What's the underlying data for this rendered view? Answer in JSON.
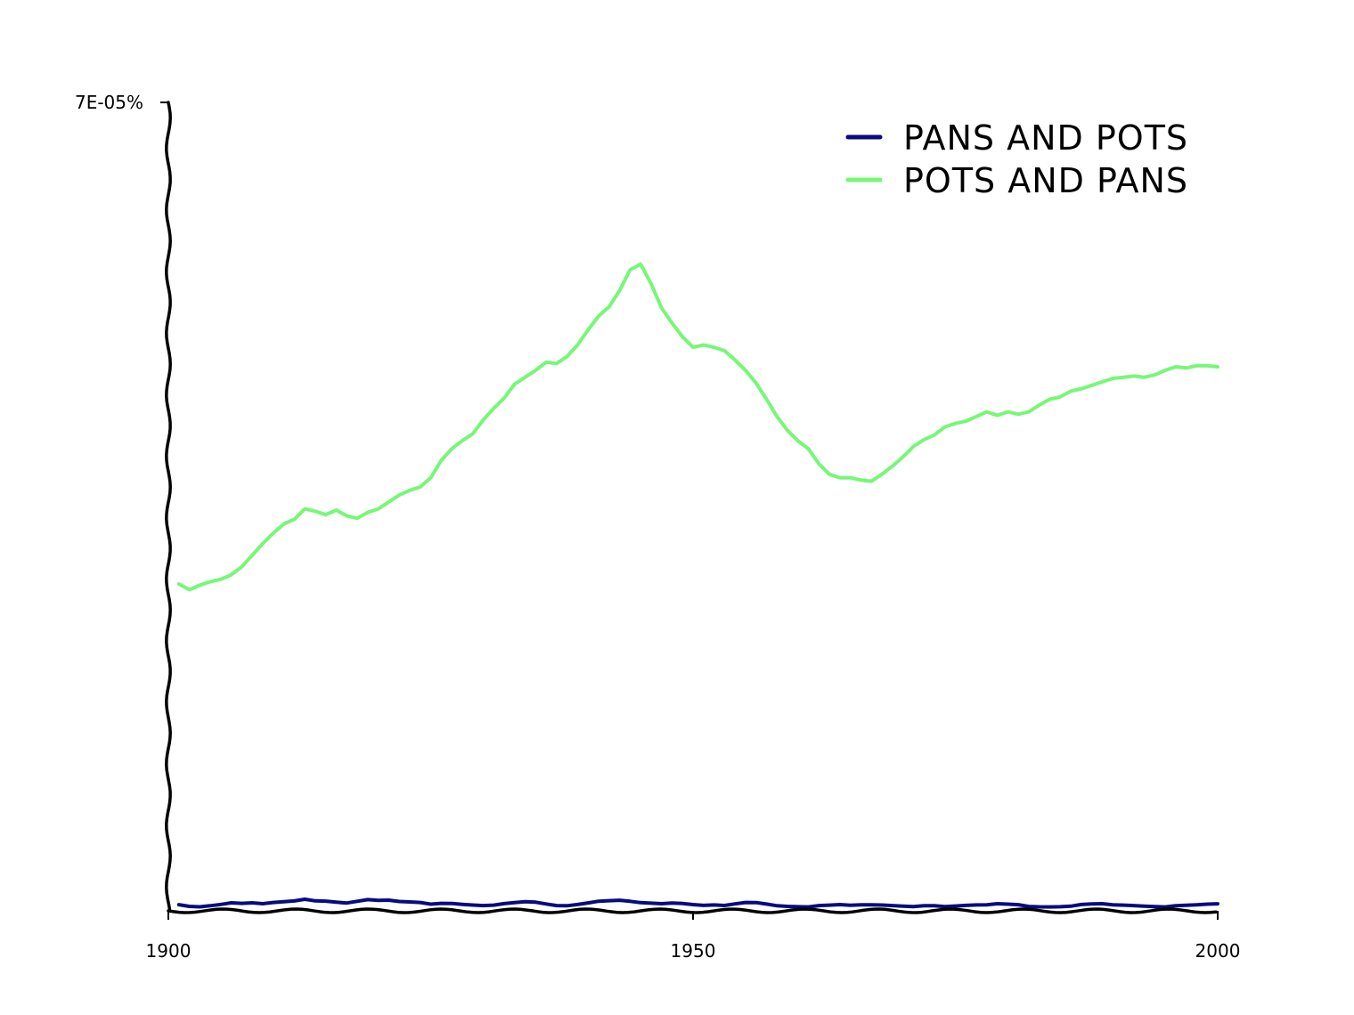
{
  "chart_data": {
    "type": "line",
    "title": "",
    "xlabel": "",
    "ylabel": "",
    "xlim": [
      1900,
      2000
    ],
    "ylim": [
      0,
      7e-05
    ],
    "x_ticks": [
      {
        "value": 1900,
        "label": "1900"
      },
      {
        "value": 1950,
        "label": "1950"
      },
      {
        "value": 2000,
        "label": "2000"
      }
    ],
    "y_ticks": [
      {
        "value": 7e-05,
        "label": "7E-05%"
      }
    ],
    "grid": false,
    "legend_position": "top-right",
    "style": "hand-drawn",
    "x": [
      1901,
      1902,
      1903,
      1904,
      1905,
      1906,
      1907,
      1908,
      1909,
      1910,
      1911,
      1912,
      1913,
      1914,
      1915,
      1916,
      1917,
      1918,
      1919,
      1920,
      1921,
      1922,
      1923,
      1924,
      1925,
      1926,
      1927,
      1928,
      1929,
      1930,
      1931,
      1932,
      1933,
      1934,
      1935,
      1936,
      1937,
      1938,
      1939,
      1940,
      1941,
      1942,
      1943,
      1944,
      1945,
      1946,
      1947,
      1948,
      1949,
      1950,
      1951,
      1952,
      1953,
      1954,
      1955,
      1956,
      1957,
      1958,
      1959,
      1960,
      1961,
      1962,
      1963,
      1964,
      1965,
      1966,
      1967,
      1968,
      1969,
      1970,
      1971,
      1972,
      1973,
      1974,
      1975,
      1976,
      1977,
      1978,
      1979,
      1980,
      1981,
      1982,
      1983,
      1984,
      1985,
      1986,
      1987,
      1988,
      1989,
      1990,
      1991,
      1992,
      1993,
      1994,
      1995,
      1996,
      1997,
      1998,
      1999,
      2000
    ],
    "series": [
      {
        "name": "PANS AND POTS",
        "color": "#0a0a80",
        "values": [
          3e-07,
          2e-07,
          2e-07,
          3e-07,
          4e-07,
          5e-07,
          4e-07,
          4e-07,
          3e-07,
          4e-07,
          5e-07,
          6e-07,
          8e-07,
          7e-07,
          7e-07,
          6e-07,
          5e-07,
          6e-07,
          7e-07,
          6e-07,
          6e-07,
          5e-07,
          5e-07,
          5e-07,
          4e-07,
          5e-07,
          5e-07,
          4e-07,
          3e-07,
          2e-07,
          2e-07,
          3e-07,
          4e-07,
          5e-07,
          5e-07,
          4e-07,
          3e-07,
          3e-07,
          4e-07,
          5e-07,
          6e-07,
          6e-07,
          6e-07,
          5e-07,
          4e-07,
          4e-07,
          4e-07,
          5e-07,
          5e-07,
          4e-07,
          3e-07,
          3e-07,
          2e-07,
          3e-07,
          4e-07,
          4e-07,
          3e-07,
          2e-07,
          2e-07,
          2e-07,
          2e-07,
          3e-07,
          3e-07,
          3e-07,
          2e-07,
          2e-07,
          2e-07,
          2e-07,
          2e-07,
          2e-07,
          2e-07,
          3e-07,
          3e-07,
          2e-07,
          2e-07,
          2e-07,
          2e-07,
          2e-07,
          3e-07,
          3e-07,
          3e-07,
          2e-07,
          2e-07,
          2e-07,
          2e-07,
          2e-07,
          3e-07,
          3e-07,
          3e-07,
          2e-07,
          2e-07,
          2e-07,
          2e-07,
          2e-07,
          2e-07,
          3e-07,
          3e-07,
          3e-07,
          3e-07,
          3e-07
        ]
      },
      {
        "name": "POTS AND PANS",
        "color": "#77f777",
        "values": [
          2.83e-05,
          2.78e-05,
          2.82e-05,
          2.85e-05,
          2.87e-05,
          2.91e-05,
          2.98e-05,
          3.08e-05,
          3.18e-05,
          3.27e-05,
          3.35e-05,
          3.39e-05,
          3.48e-05,
          3.46e-05,
          3.43e-05,
          3.47e-05,
          3.42e-05,
          3.4e-05,
          3.45e-05,
          3.48e-05,
          3.54e-05,
          3.6e-05,
          3.64e-05,
          3.67e-05,
          3.75e-05,
          3.9e-05,
          4e-05,
          4.07e-05,
          4.13e-05,
          4.25e-05,
          4.35e-05,
          4.44e-05,
          4.56e-05,
          4.62e-05,
          4.68e-05,
          4.75e-05,
          4.74e-05,
          4.8e-05,
          4.9e-05,
          5.03e-05,
          5.15e-05,
          5.23e-05,
          5.37e-05,
          5.55e-05,
          5.6e-05,
          5.43e-05,
          5.22e-05,
          5.09e-05,
          4.97e-05,
          4.88e-05,
          4.9e-05,
          4.88e-05,
          4.85e-05,
          4.77e-05,
          4.68e-05,
          4.57e-05,
          4.43e-05,
          4.28e-05,
          4.16e-05,
          4.07e-05,
          4e-05,
          3.87e-05,
          3.78e-05,
          3.75e-05,
          3.75e-05,
          3.73e-05,
          3.72e-05,
          3.78e-05,
          3.85e-05,
          3.93e-05,
          4.02e-05,
          4.08e-05,
          4.12e-05,
          4.19e-05,
          4.22e-05,
          4.24e-05,
          4.28e-05,
          4.32e-05,
          4.29e-05,
          4.32e-05,
          4.3e-05,
          4.32e-05,
          4.38e-05,
          4.43e-05,
          4.45e-05,
          4.5e-05,
          4.52e-05,
          4.55e-05,
          4.58e-05,
          4.61e-05,
          4.62e-05,
          4.63e-05,
          4.62e-05,
          4.64e-05,
          4.68e-05,
          4.71e-05,
          4.7e-05,
          4.72e-05,
          4.72e-05,
          4.71e-05
        ]
      }
    ]
  }
}
